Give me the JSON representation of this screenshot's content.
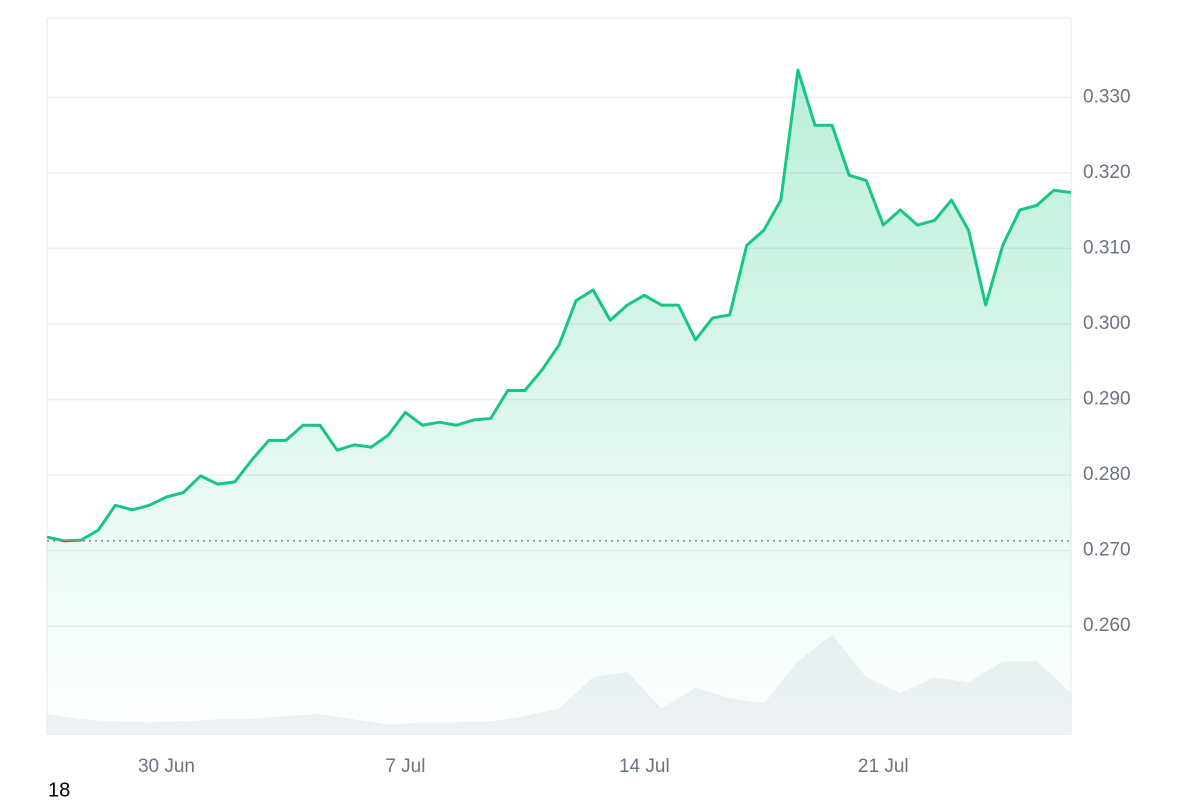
{
  "chart_data": {
    "type": "line",
    "x": [
      0,
      0.5,
      1,
      1.5,
      2,
      2.5,
      3,
      3.5,
      4,
      4.5,
      5,
      5.5,
      6,
      6.5,
      7,
      7.5,
      8,
      8.5,
      9,
      9.5,
      10,
      10.5,
      11,
      11.5,
      12,
      12.5,
      13,
      13.5,
      14,
      14.5,
      15,
      15.5,
      16,
      16.5,
      17,
      17.5,
      18,
      18.5,
      19,
      19.5,
      20,
      20.5,
      21,
      21.5,
      22,
      22.5,
      23,
      23.5,
      24,
      24.5,
      25,
      25.5,
      26,
      26.5,
      27,
      27.5,
      28,
      28.5,
      29,
      29.5,
      30
    ],
    "series": [
      {
        "name": "Price",
        "color": "#16c784",
        "below_color": "#ea3943",
        "values": [
          0.2718,
          0.2713,
          0.2714,
          0.2727,
          0.276,
          0.2754,
          0.276,
          0.2771,
          0.2777,
          0.2799,
          0.2788,
          0.2791,
          0.282,
          0.2846,
          0.2846,
          0.2866,
          0.2866,
          0.2833,
          0.284,
          0.2837,
          0.2853,
          0.2883,
          0.2866,
          0.287,
          0.2866,
          0.2873,
          0.2875,
          0.2912,
          0.2912,
          0.2939,
          0.2972,
          0.3031,
          0.3045,
          0.3005,
          0.3025,
          0.3038,
          0.3025,
          0.3025,
          0.2979,
          0.3008,
          0.3012,
          0.3104,
          0.3124,
          0.3164,
          0.3336,
          0.3263,
          0.3263,
          0.3197,
          0.319,
          0.3131,
          0.3151,
          0.3131,
          0.3137,
          0.3164,
          0.3124,
          0.3025,
          0.3104,
          0.3151,
          0.3157,
          0.3177,
          0.3174
        ]
      }
    ],
    "baseline": 0.2713,
    "volume": {
      "color": "#eef1f5",
      "values": [
        20,
        15,
        13,
        12,
        13,
        15,
        15,
        18,
        20,
        15,
        10,
        12,
        12,
        13,
        18,
        25,
        55,
        60,
        25,
        45,
        35,
        30,
        70,
        95,
        55,
        40,
        55,
        50,
        70,
        70,
        40
      ]
    },
    "xlim": [
      0,
      30
    ],
    "xticks": [
      {
        "value": 3.5,
        "label": "30 Jun"
      },
      {
        "value": 10.5,
        "label": "7 Jul"
      },
      {
        "value": 17.5,
        "label": "14 Jul"
      },
      {
        "value": 24.5,
        "label": "21 Jul"
      }
    ],
    "ylim": [
      0.2456,
      0.3405
    ],
    "yticks": [
      {
        "value": 0.26,
        "label": "0.260"
      },
      {
        "value": 0.27,
        "label": "0.270"
      },
      {
        "value": 0.28,
        "label": "0.280"
      },
      {
        "value": 0.29,
        "label": "0.290"
      },
      {
        "value": 0.3,
        "label": "0.300"
      },
      {
        "value": 0.31,
        "label": "0.310"
      },
      {
        "value": 0.32,
        "label": "0.320"
      },
      {
        "value": 0.33,
        "label": "0.330"
      }
    ],
    "grid": true,
    "footer_text": "18"
  }
}
